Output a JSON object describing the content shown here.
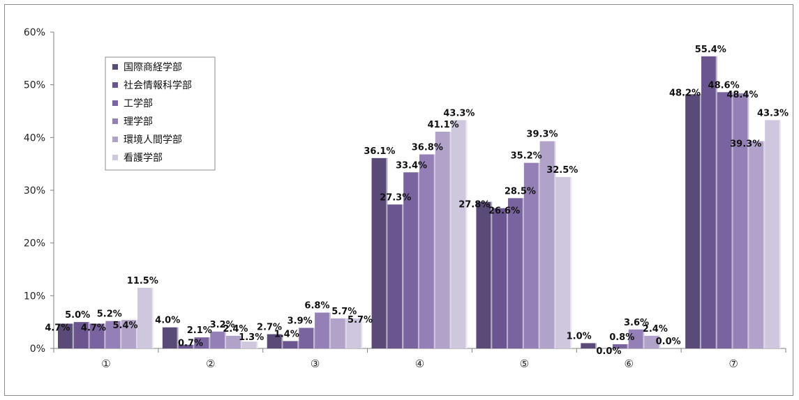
{
  "chart_data": {
    "type": "bar",
    "categories": [
      "①",
      "②",
      "③",
      "④",
      "⑤",
      "⑥",
      "⑦"
    ],
    "ylim": [
      0,
      60
    ],
    "yticks": [
      0,
      10,
      20,
      30,
      40,
      50,
      60
    ],
    "ytick_labels": [
      "0%",
      "10%",
      "20%",
      "30%",
      "40%",
      "50%",
      "60%"
    ],
    "grid": false,
    "legend_position": "top-left",
    "series": [
      {
        "name": "国際商経学部",
        "color": "#5a4a78",
        "values": [
          4.7,
          4.0,
          2.7,
          36.1,
          27.8,
          1.0,
          48.2
        ],
        "labels": [
          "4.7%",
          "4.0%",
          "2.7%",
          "36.1%",
          "27.8%",
          "1.0%",
          "48.2%"
        ]
      },
      {
        "name": "社会情報科学部",
        "color": "#6b5590",
        "values": [
          5.0,
          0.7,
          1.4,
          27.3,
          26.6,
          0.0,
          55.4
        ],
        "labels": [
          "5.0%",
          "0.7%",
          "1.4%",
          "27.3%",
          "26.6%",
          "0.0%",
          "55.4%"
        ]
      },
      {
        "name": "工学部",
        "color": "#7a64a0",
        "values": [
          4.7,
          2.1,
          3.9,
          33.4,
          28.5,
          0.8,
          48.6
        ],
        "labels": [
          "4.7%",
          "2.1%",
          "3.9%",
          "33.4%",
          "28.5%",
          "0.8%",
          "48.6%"
        ]
      },
      {
        "name": "理学部",
        "color": "#9480b6",
        "values": [
          5.2,
          3.2,
          6.8,
          36.8,
          35.2,
          3.6,
          48.4
        ],
        "labels": [
          "5.2%",
          "3.2%",
          "6.8%",
          "36.8%",
          "35.2%",
          "3.6%",
          "48.4%"
        ]
      },
      {
        "name": "環境人間学部",
        "color": "#b0a2c8",
        "values": [
          5.4,
          2.4,
          5.7,
          41.1,
          39.3,
          2.4,
          39.3
        ],
        "labels": [
          "5.4%",
          "2.4%",
          "5.7%",
          "41.1%",
          "39.3%",
          "2.4%",
          "39.3%"
        ]
      },
      {
        "name": "看護学部",
        "color": "#cfc7de",
        "values": [
          11.5,
          1.3,
          5.7,
          43.3,
          32.5,
          0.0,
          43.3
        ],
        "labels": [
          "11.5%",
          "1.3%",
          "5.7%",
          "43.3%",
          "32.5%",
          "0.0%",
          "43.3%"
        ]
      }
    ]
  }
}
